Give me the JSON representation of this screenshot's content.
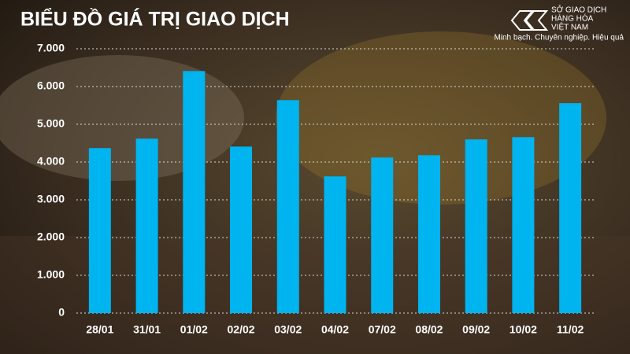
{
  "chart_data": {
    "type": "bar",
    "title": "BIỂU ĐỒ GIÁ TRỊ GIAO DỊCH",
    "categories": [
      "28/01",
      "31/01",
      "01/02",
      "02/02",
      "03/02",
      "04/02",
      "07/02",
      "08/02",
      "09/02",
      "10/02",
      "11/02"
    ],
    "values": [
      4370,
      4620,
      6410,
      4410,
      5640,
      3620,
      4120,
      4180,
      4600,
      4660,
      5560
    ],
    "color": "#00b4f0",
    "ylim": [
      0,
      7000
    ],
    "yticks": [
      0,
      {
        "value": 1000,
        "label": "1.000"
      },
      {
        "value": 2000,
        "label": "2.000"
      },
      {
        "value": 3000,
        "label": "3.000"
      },
      {
        "value": 4000,
        "label": "4.000"
      },
      {
        "value": 5000,
        "label": "5.000"
      },
      {
        "value": 6000,
        "label": "6.000"
      },
      {
        "value": 7000,
        "label": "7.000"
      }
    ],
    "grid": true
  },
  "logo": {
    "line1": "SỞ GIAO DỊCH",
    "line2": "HÀNG HÓA",
    "line3": "VIỆT NAM",
    "tagline": "Minh bạch. Chuyên nghiệp. Hiệu quả"
  }
}
